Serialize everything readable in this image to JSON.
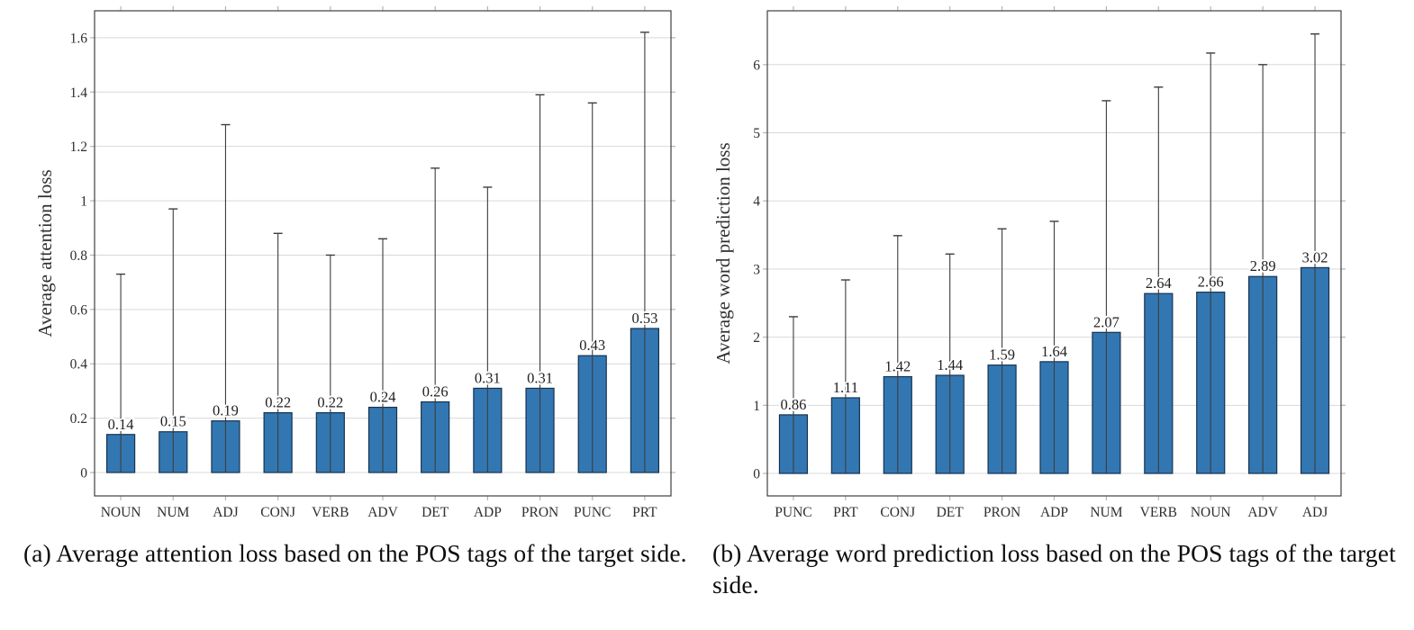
{
  "captions": {
    "a": "(a) Average attention loss based on the POS tags of the target side.",
    "b": "(b) Average word prediction loss based on the POS tags of the target side."
  },
  "chart_data": [
    {
      "type": "bar",
      "panel": "a",
      "title": "",
      "xlabel": "",
      "ylabel": "Average attention loss",
      "categories": [
        "NOUN",
        "NUM",
        "ADJ",
        "CONJ",
        "VERB",
        "ADV",
        "DET",
        "ADP",
        "PRON",
        "PUNC",
        "PRT"
      ],
      "values": [
        0.14,
        0.15,
        0.19,
        0.22,
        0.22,
        0.24,
        0.26,
        0.31,
        0.31,
        0.43,
        0.53
      ],
      "value_labels": [
        "0.14",
        "0.15",
        "0.19",
        "0.22",
        "0.22",
        "0.24",
        "0.26",
        "0.31",
        "0.31",
        "0.43",
        "0.53"
      ],
      "error_top": [
        0.73,
        0.97,
        1.28,
        0.88,
        0.8,
        0.86,
        1.12,
        1.05,
        1.39,
        1.36,
        1.62
      ],
      "error_bottom": [
        0,
        0,
        0,
        0,
        0,
        0,
        0,
        0,
        0,
        0,
        0
      ],
      "yticks": [
        0,
        0.2,
        0.4,
        0.6,
        0.8,
        1,
        1.2,
        1.4,
        1.6
      ],
      "ytick_labels": [
        "0",
        "0.2",
        "0.4",
        "0.6",
        "0.8",
        "1",
        "1.2",
        "1.4",
        "1.6"
      ],
      "ylim": [
        -0.086,
        1.699
      ],
      "grid": true,
      "legend": null,
      "bar_color": "#3377b2",
      "bar_edge_color": "#16324f",
      "error_color": "#3d3d3d",
      "grid_color": "#d9d9d9",
      "box_color": "#3f3f3f",
      "tick_color": "#b5b5b5"
    },
    {
      "type": "bar",
      "panel": "b",
      "title": "",
      "xlabel": "",
      "ylabel": "Average word prediction loss",
      "categories": [
        "PUNC",
        "PRT",
        "CONJ",
        "DET",
        "PRON",
        "ADP",
        "NUM",
        "VERB",
        "NOUN",
        "ADV",
        "ADJ"
      ],
      "values": [
        0.86,
        1.11,
        1.42,
        1.44,
        1.59,
        1.64,
        2.07,
        2.64,
        2.66,
        2.89,
        3.02
      ],
      "value_labels": [
        "0.86",
        "1.11",
        "1.42",
        "1.44",
        "1.59",
        "1.64",
        "2.07",
        "2.64",
        "2.66",
        "2.89",
        "3.02"
      ],
      "error_top": [
        2.3,
        2.84,
        3.49,
        3.22,
        3.59,
        3.7,
        5.47,
        5.67,
        6.17,
        6.0,
        6.45
      ],
      "error_bottom": [
        0,
        0,
        0,
        0,
        0,
        0,
        0,
        0,
        0,
        0,
        0
      ],
      "yticks": [
        0,
        1,
        2,
        3,
        4,
        5,
        6
      ],
      "ytick_labels": [
        "0",
        "1",
        "2",
        "3",
        "4",
        "5",
        "6"
      ],
      "ylim": [
        -0.33,
        6.79
      ],
      "grid": true,
      "legend": null,
      "bar_color": "#3377b2",
      "bar_edge_color": "#16324f",
      "error_color": "#3d3d3d",
      "grid_color": "#d9d9d9",
      "box_color": "#3f3f3f",
      "tick_color": "#b5b5b5"
    }
  ]
}
